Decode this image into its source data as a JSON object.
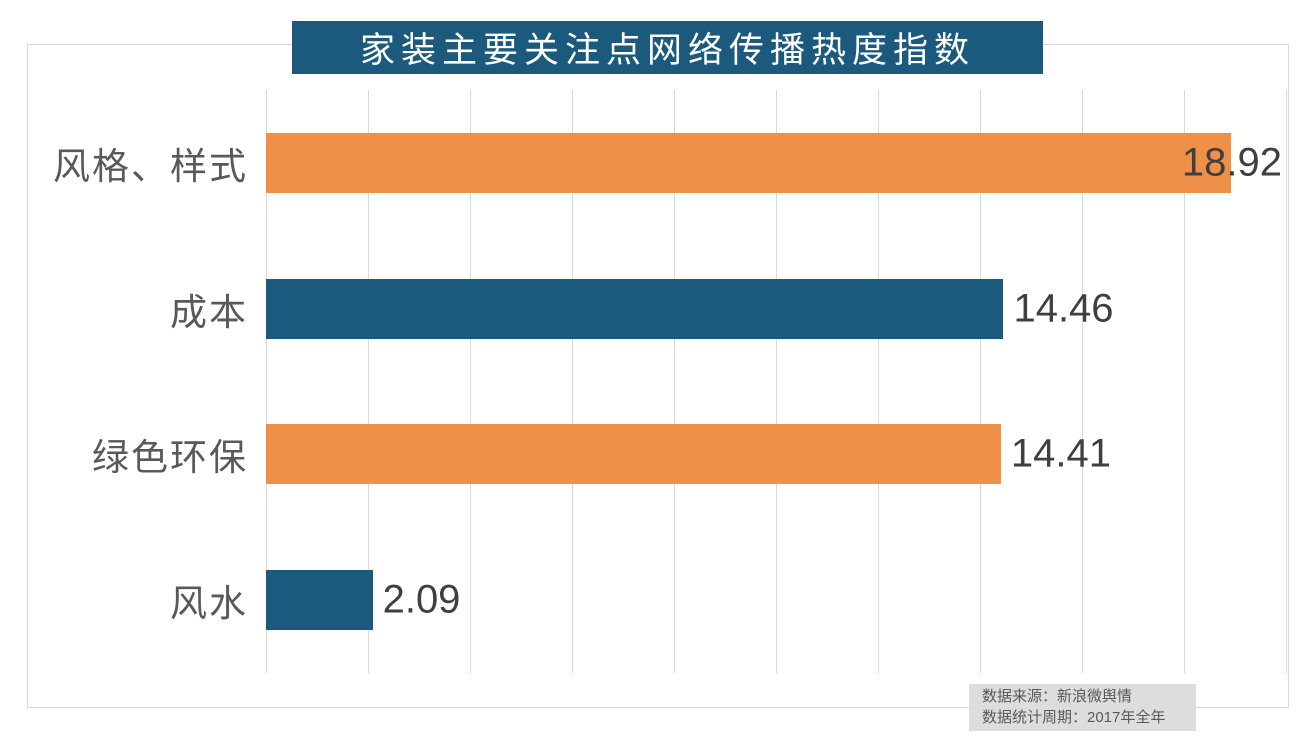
{
  "title": "家装主要关注点网络传播热度指数",
  "chart_data": {
    "type": "bar",
    "orientation": "horizontal",
    "title": "家装主要关注点网络传播热度指数",
    "categories": [
      "风格、样式",
      "成本",
      "绿色环保",
      "风水"
    ],
    "values": [
      18.92,
      14.46,
      14.41,
      2.09
    ],
    "value_labels": [
      "18.92",
      "14.46",
      "14.41",
      "2.09"
    ],
    "bar_colors": [
      "#ef9048",
      "#1b5a7c",
      "#ef9048",
      "#1b5a7c"
    ],
    "xlabel": "",
    "ylabel": "",
    "xlim": [
      0,
      20
    ],
    "gridline_step": 2,
    "grid": true,
    "legend": false,
    "axis_tick_labels_visible": false
  },
  "source_note": {
    "line1": "数据来源：新浪微舆情",
    "line2": "数据统计周期：2017年全年"
  },
  "colors": {
    "title_bg": "#1b5a7c",
    "title_text": "#ffffff",
    "orange": "#ef9048",
    "teal": "#1b5a7c",
    "gridline": "#d9d9d9",
    "frame_border": "#d9d9d9",
    "category_label": "#595959",
    "value_label": "#3f3f3f",
    "source_bg": "#dddddd",
    "source_text": "#595959"
  }
}
